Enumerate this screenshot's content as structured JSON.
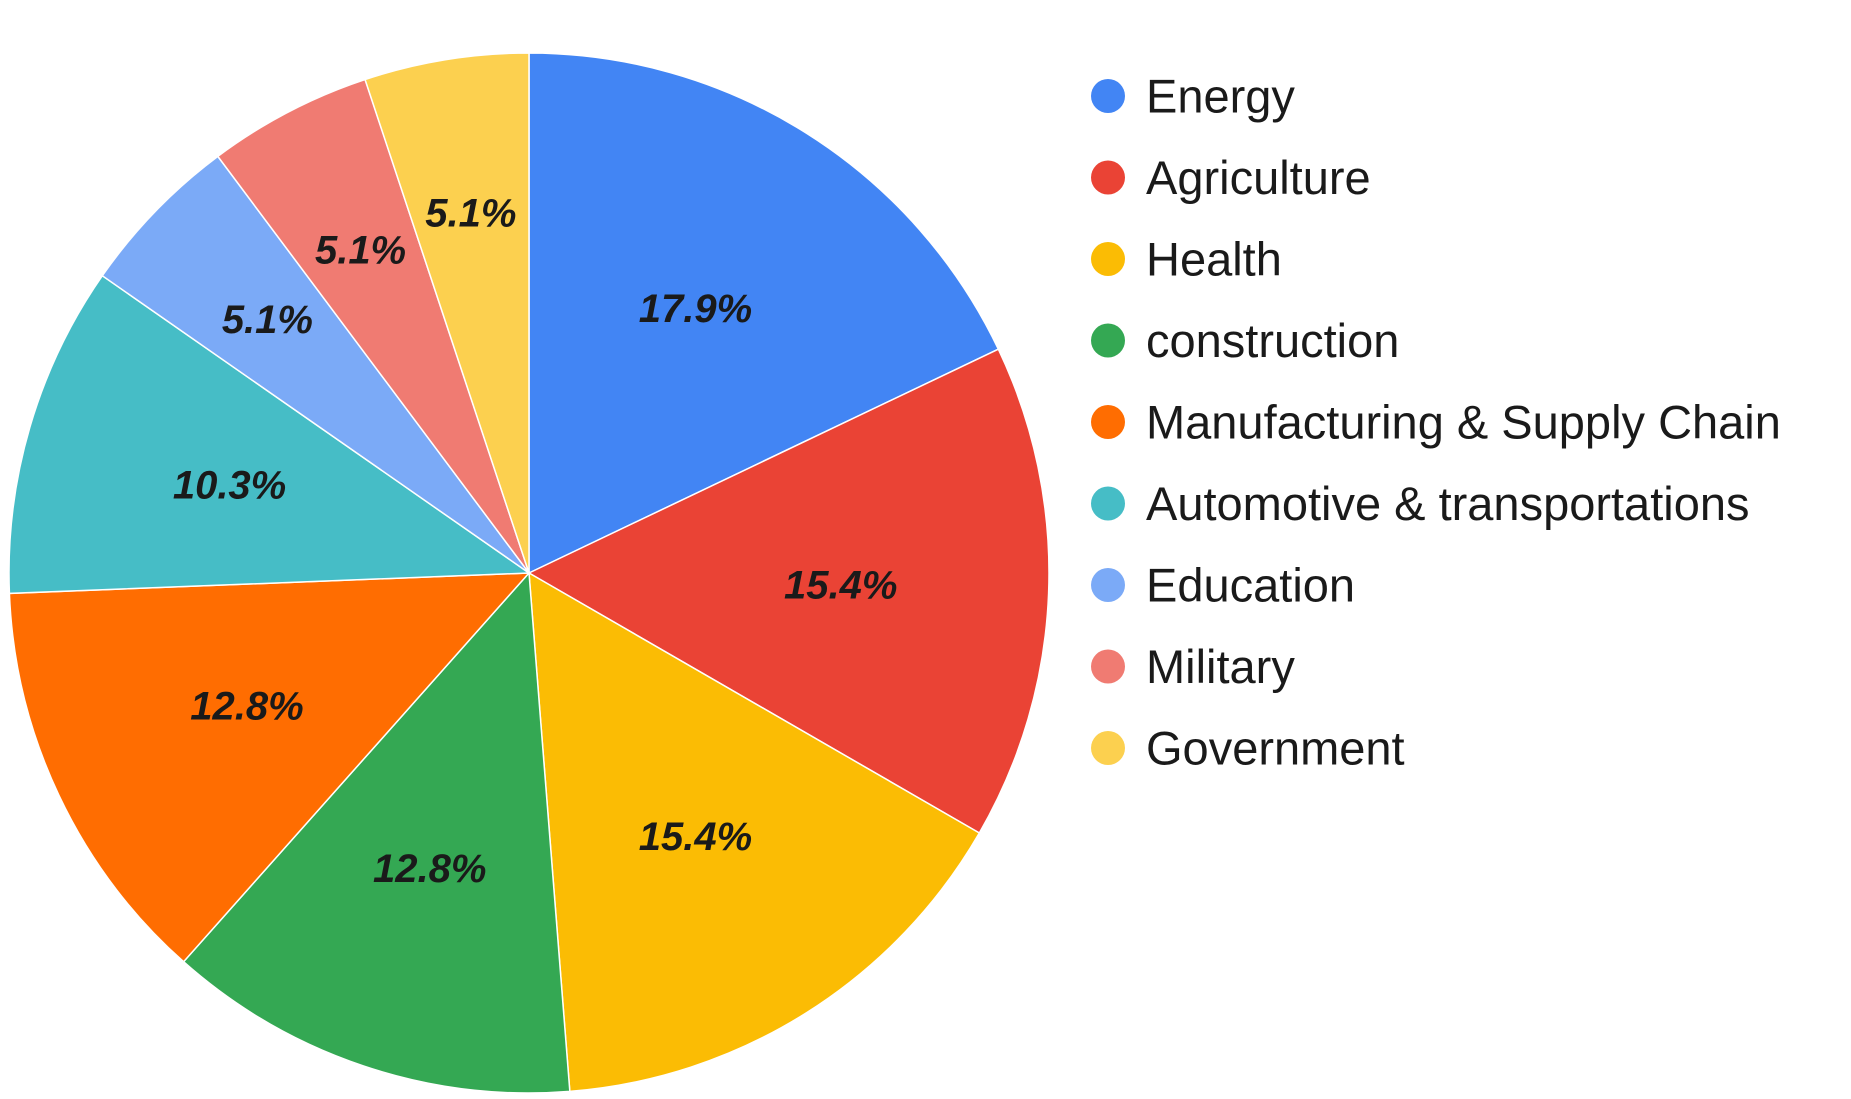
{
  "chart_data": {
    "type": "pie",
    "title": "",
    "legend_position": "right",
    "start_angle_deg": 0,
    "direction": "clockwise",
    "slices": [
      {
        "label": "Energy",
        "value": 17.9,
        "value_label": "17.9%",
        "color": "#4285F4"
      },
      {
        "label": "Agriculture",
        "value": 15.4,
        "value_label": "15.4%",
        "color": "#EA4335"
      },
      {
        "label": "Health",
        "value": 15.4,
        "value_label": "15.4%",
        "color": "#FBBC04"
      },
      {
        "label": "construction",
        "value": 12.8,
        "value_label": "12.8%",
        "color": "#34A853"
      },
      {
        "label": "Manufacturing & Supply Chain",
        "value": 12.8,
        "value_label": "12.8%",
        "color": "#FF6D01"
      },
      {
        "label": "Automotive & transportations",
        "value": 10.3,
        "value_label": "10.3%",
        "color": "#46BDC6"
      },
      {
        "label": "Education",
        "value": 5.1,
        "value_label": "5.1%",
        "color": "#7BAAF7"
      },
      {
        "label": "Military",
        "value": 5.1,
        "value_label": "5.1%",
        "color": "#F07B72"
      },
      {
        "label": "Government",
        "value": 5.1,
        "value_label": "5.1%",
        "color": "#FCD04F"
      }
    ]
  }
}
